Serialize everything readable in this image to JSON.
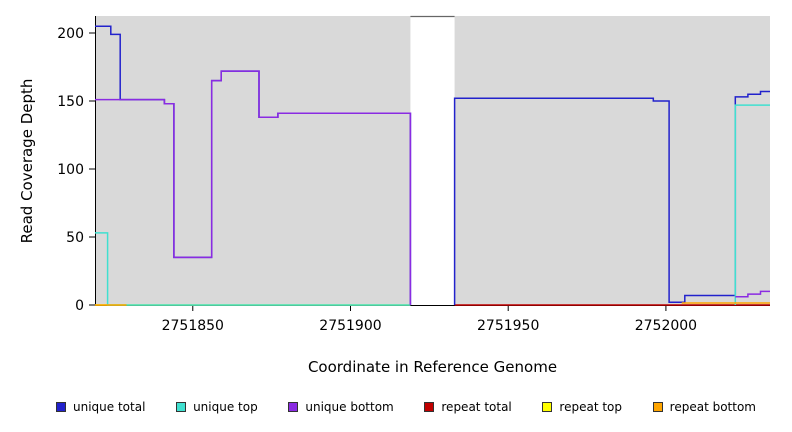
{
  "figure": {
    "xlabel": "Coordinate in Reference Genome",
    "ylabel": "Read Coverage Depth"
  },
  "legend": {
    "items": [
      {
        "label": "unique total",
        "color": "#2222CC"
      },
      {
        "label": "unique top",
        "color": "#40E0D0"
      },
      {
        "label": "unique bottom",
        "color": "#8A2BE2"
      },
      {
        "label": "repeat total",
        "color": "#C00000"
      },
      {
        "label": "repeat top",
        "color": "#FFFF00"
      },
      {
        "label": "repeat bottom",
        "color": "#FFA500"
      }
    ]
  },
  "chart_data": {
    "type": "line",
    "title": "",
    "xlabel": "Coordinate in Reference Genome",
    "ylabel": "Read Coverage Depth",
    "xlim": [
      2751819,
      2752033
    ],
    "ylim": [
      0,
      212.5
    ],
    "xticks": [
      2751850,
      2751900,
      2751950,
      2752000
    ],
    "yticks": [
      0,
      50,
      100,
      150,
      200
    ],
    "grid": false,
    "legend_position": "bottom",
    "plot_bg": "#d9d9d9",
    "gap": {
      "from": 2751919,
      "to": 2751933
    },
    "series": [
      {
        "id": "repeat-top",
        "name": "repeat top",
        "color": "#FFFF00",
        "segments": [
          [
            [
              2751819,
              0
            ],
            [
              2751919,
              0
            ]
          ]
        ]
      },
      {
        "id": "repeat-total",
        "name": "repeat total",
        "color": "#C00000",
        "segments": [
          [
            [
              2751933,
              0
            ],
            [
              2752033,
              0
            ]
          ]
        ]
      },
      {
        "id": "unique-total",
        "name": "unique total",
        "color": "#2222CC",
        "segments": [
          [
            [
              2751819,
              205
            ],
            [
              2751824,
              205
            ],
            [
              2751824,
              199
            ],
            [
              2751827,
              199
            ],
            [
              2751827,
              151
            ],
            [
              2751841,
              151
            ],
            [
              2751841,
              148
            ],
            [
              2751844,
              148
            ],
            [
              2751844,
              35
            ],
            [
              2751856,
              35
            ],
            [
              2751856,
              165
            ],
            [
              2751859,
              165
            ],
            [
              2751859,
              172
            ],
            [
              2751871,
              172
            ],
            [
              2751871,
              138
            ],
            [
              2751877,
              138
            ],
            [
              2751877,
              141
            ],
            [
              2751919,
              141
            ],
            [
              2751919,
              0
            ]
          ],
          [
            [
              2751933,
              0
            ],
            [
              2751933,
              152
            ],
            [
              2751996,
              152
            ],
            [
              2751996,
              150
            ],
            [
              2752001,
              150
            ],
            [
              2752001,
              2
            ],
            [
              2752006,
              2
            ],
            [
              2752006,
              7
            ],
            [
              2752022,
              7
            ],
            [
              2752022,
              153
            ],
            [
              2752026,
              153
            ],
            [
              2752026,
              155
            ],
            [
              2752030,
              155
            ],
            [
              2752030,
              157
            ],
            [
              2752033,
              157
            ]
          ]
        ]
      },
      {
        "id": "unique-top",
        "name": "unique top",
        "color": "#40E0D0",
        "segments": [
          [
            [
              2751819,
              53
            ],
            [
              2751823,
              53
            ],
            [
              2751823,
              0
            ],
            [
              2751919,
              0
            ]
          ],
          [
            [
              2752022,
              0
            ],
            [
              2752022,
              147
            ],
            [
              2752033,
              147
            ]
          ]
        ]
      },
      {
        "id": "unique-bottom",
        "name": "unique bottom",
        "color": "#8A2BE2",
        "segments": [
          [
            [
              2751819,
              151
            ],
            [
              2751841,
              151
            ],
            [
              2751841,
              148
            ],
            [
              2751844,
              148
            ],
            [
              2751844,
              35
            ],
            [
              2751856,
              35
            ],
            [
              2751856,
              165
            ],
            [
              2751859,
              165
            ],
            [
              2751859,
              172
            ],
            [
              2751871,
              172
            ],
            [
              2751871,
              138
            ],
            [
              2751877,
              138
            ],
            [
              2751877,
              141
            ],
            [
              2751919,
              141
            ],
            [
              2751919,
              0
            ]
          ],
          [
            [
              2752022,
              6
            ],
            [
              2752026,
              6
            ],
            [
              2752026,
              8
            ],
            [
              2752030,
              8
            ],
            [
              2752030,
              10
            ],
            [
              2752033,
              10
            ]
          ]
        ]
      },
      {
        "id": "repeat-bottom",
        "name": "repeat bottom",
        "color": "#FFA500",
        "segments": [
          [
            [
              2751819,
              0
            ],
            [
              2751829,
              0
            ]
          ],
          [
            [
              2752005,
              1.5
            ],
            [
              2752033,
              1.5
            ]
          ]
        ]
      }
    ]
  }
}
